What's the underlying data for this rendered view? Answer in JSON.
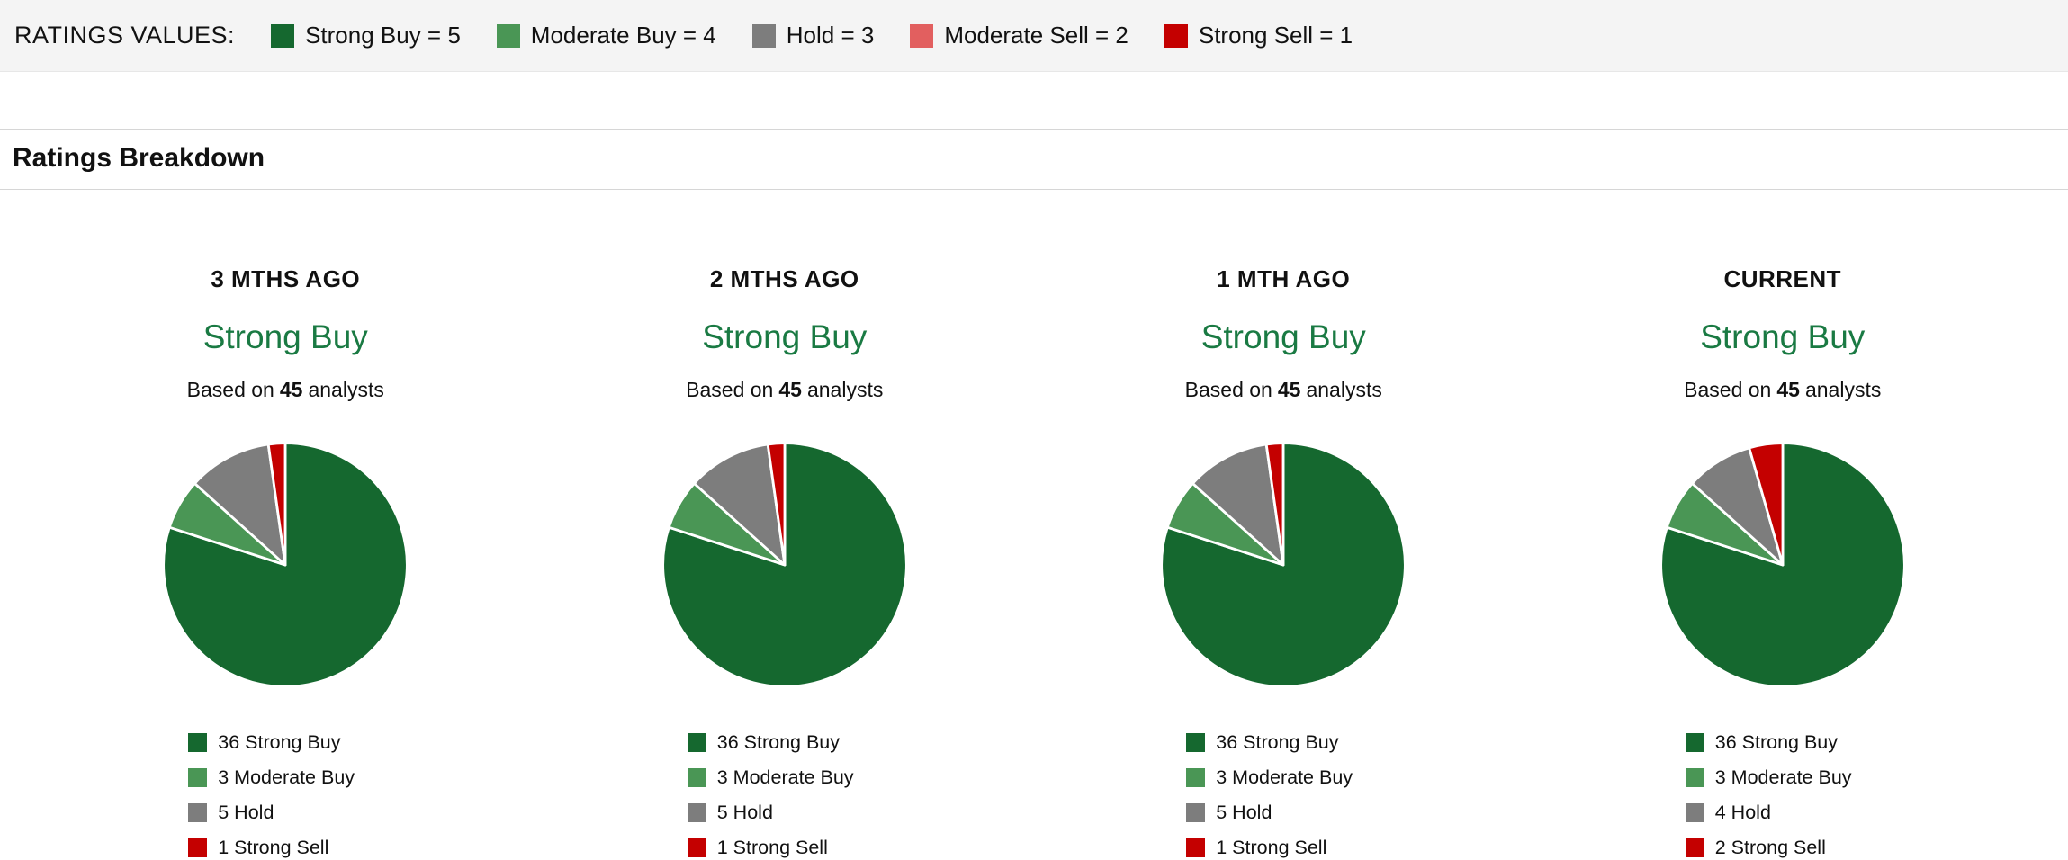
{
  "ratings_values": {
    "label": "RATINGS VALUES:",
    "items": [
      "Strong Buy = 5",
      "Moderate Buy = 4",
      "Hold = 3",
      "Moderate Sell = 2",
      "Strong Sell = 1"
    ]
  },
  "section_title": "Ratings Breakdown",
  "strings": {
    "based_on": "Based on",
    "analysts_word": "analysts"
  },
  "palette": {
    "strong_buy": "#15682f",
    "moderate_buy": "#4a9655",
    "hold": "#7d7d7d",
    "moderate_sell": "#e25f5f",
    "strong_sell": "#c40000",
    "rating_green": "#1a7a43"
  },
  "chart_data": [
    {
      "type": "pie",
      "period": "3 MTHS AGO",
      "consensus": "Strong Buy",
      "analysts_count": "45",
      "categories": [
        "Strong Buy",
        "Moderate Buy",
        "Hold",
        "Strong Sell"
      ],
      "values": [
        36,
        3,
        5,
        1
      ],
      "colors": [
        "strong_buy",
        "moderate_buy",
        "hold",
        "strong_sell"
      ],
      "legend": [
        "36 Strong Buy",
        "3 Moderate Buy",
        "5 Hold",
        "1 Strong Sell"
      ]
    },
    {
      "type": "pie",
      "period": "2 MTHS AGO",
      "consensus": "Strong Buy",
      "analysts_count": "45",
      "categories": [
        "Strong Buy",
        "Moderate Buy",
        "Hold",
        "Strong Sell"
      ],
      "values": [
        36,
        3,
        5,
        1
      ],
      "colors": [
        "strong_buy",
        "moderate_buy",
        "hold",
        "strong_sell"
      ],
      "legend": [
        "36 Strong Buy",
        "3 Moderate Buy",
        "5 Hold",
        "1 Strong Sell"
      ]
    },
    {
      "type": "pie",
      "period": "1 MTH AGO",
      "consensus": "Strong Buy",
      "analysts_count": "45",
      "categories": [
        "Strong Buy",
        "Moderate Buy",
        "Hold",
        "Strong Sell"
      ],
      "values": [
        36,
        3,
        5,
        1
      ],
      "colors": [
        "strong_buy",
        "moderate_buy",
        "hold",
        "strong_sell"
      ],
      "legend": [
        "36 Strong Buy",
        "3 Moderate Buy",
        "5 Hold",
        "1 Strong Sell"
      ]
    },
    {
      "type": "pie",
      "period": "CURRENT",
      "consensus": "Strong Buy",
      "analysts_count": "45",
      "categories": [
        "Strong Buy",
        "Moderate Buy",
        "Hold",
        "Strong Sell"
      ],
      "values": [
        36,
        3,
        4,
        2
      ],
      "colors": [
        "strong_buy",
        "moderate_buy",
        "hold",
        "strong_sell"
      ],
      "legend": [
        "36 Strong Buy",
        "3 Moderate Buy",
        "4 Hold",
        "2 Strong Sell"
      ]
    }
  ]
}
